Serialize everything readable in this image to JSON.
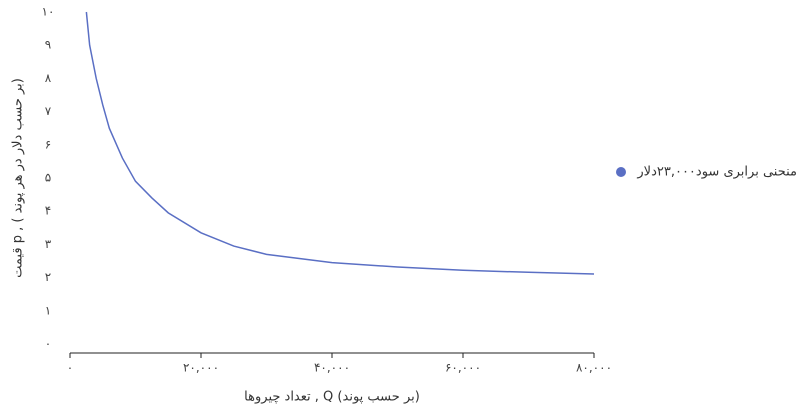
{
  "chart_data": {
    "type": "line",
    "x_label": "تعداد چیروها , Q (بر حسب پوند)",
    "y_label": "قیمت p , ( بر حسب دلار در هر پوند)",
    "x": [
      2500,
      3000,
      4000,
      5000,
      6000,
      8000,
      10000,
      12500,
      15000,
      20000,
      25000,
      30000,
      40000,
      50000,
      60000,
      70000,
      80000
    ],
    "series": [
      {
        "name": "منحنی برابری سود۲۳,۰۰۰دلار",
        "color": "#5a6fc4",
        "values": [
          10,
          9.0,
          8.0,
          7.2,
          6.5,
          5.6,
          4.9,
          4.4,
          3.95,
          3.35,
          2.95,
          2.7,
          2.45,
          2.32,
          2.22,
          2.16,
          2.11
        ]
      }
    ],
    "xlim": [
      0,
      80000
    ],
    "xticks": [
      {
        "value": 0,
        "label": "۰"
      },
      {
        "value": 20000,
        "label": "۲۰,۰۰۰"
      },
      {
        "value": 40000,
        "label": "۴۰,۰۰۰"
      },
      {
        "value": 60000,
        "label": "۶۰,۰۰۰"
      },
      {
        "value": 80000,
        "label": "۸۰,۰۰۰"
      }
    ],
    "ylim": [
      0,
      10
    ],
    "yticks": [
      {
        "value": 0,
        "label": "۰"
      },
      {
        "value": 1,
        "label": "۱"
      },
      {
        "value": 2,
        "label": "۲"
      },
      {
        "value": 3,
        "label": "۳"
      },
      {
        "value": 4,
        "label": "۴"
      },
      {
        "value": 5,
        "label": "۵"
      },
      {
        "value": 6,
        "label": "۶"
      },
      {
        "value": 7,
        "label": "۷"
      },
      {
        "value": 8,
        "label": "۸"
      },
      {
        "value": 9,
        "label": "۹"
      },
      {
        "value": 10,
        "label": "۱۰"
      }
    ],
    "grid": false,
    "legend": "right"
  }
}
